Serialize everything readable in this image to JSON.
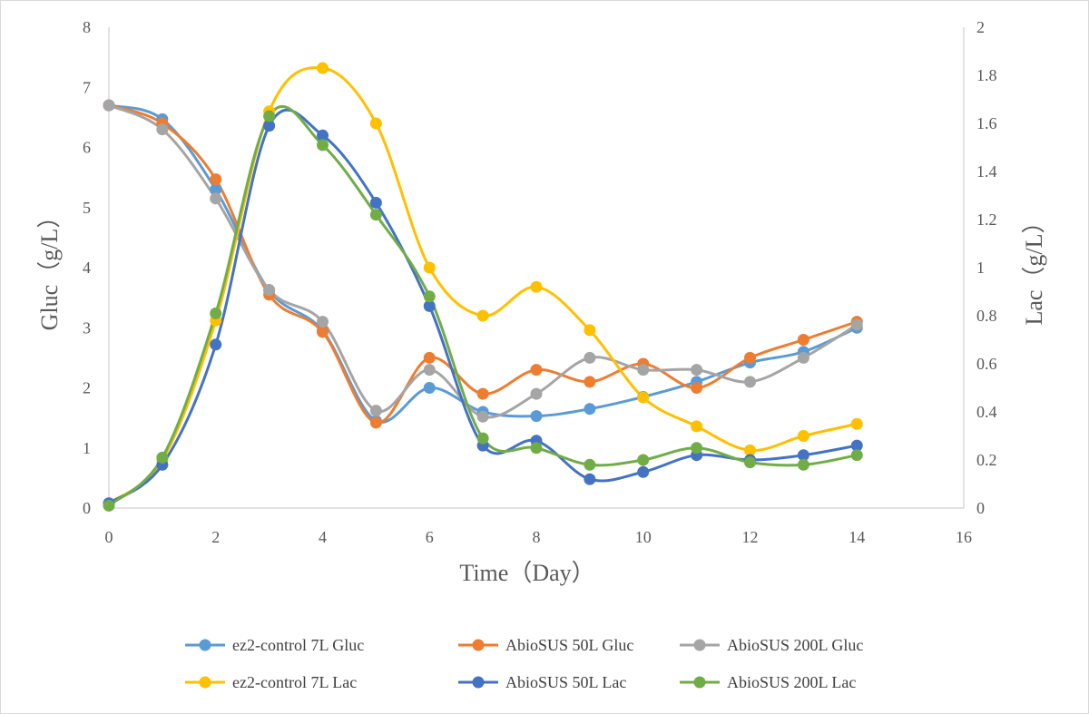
{
  "chart_data": {
    "type": "line",
    "title": "",
    "xlabel": "Time（Day）",
    "ylabel_left": "Gluc（g/L）",
    "ylabel_right": "Lac（g/L）",
    "xlim": [
      0,
      16
    ],
    "ylim_left": [
      0,
      8
    ],
    "ylim_right": [
      0,
      2
    ],
    "x_ticks": [
      "0",
      "2",
      "4",
      "6",
      "8",
      "10",
      "12",
      "14",
      "16"
    ],
    "y_ticks_left": [
      "0",
      "1",
      "2",
      "3",
      "4",
      "5",
      "6",
      "7",
      "8"
    ],
    "y_ticks_right": [
      "0",
      "0.2",
      "0.4",
      "0.6",
      "0.8",
      "1",
      "1.2",
      "1.4",
      "1.6",
      "1.8",
      "2"
    ],
    "grid": false,
    "smooth": true,
    "legend_position": "bottom",
    "x": [
      0,
      1,
      2,
      3,
      4,
      5,
      6,
      7,
      8,
      9,
      10,
      11,
      12,
      13,
      14
    ],
    "series": [
      {
        "name": "ez2-control 7L Gluc",
        "axis": "left",
        "color": "#5B9BD5",
        "values": [
          6.7,
          6.47,
          5.3,
          3.62,
          2.95,
          1.45,
          2.0,
          1.6,
          1.53,
          1.65,
          1.85,
          2.1,
          2.42,
          2.6,
          3.0
        ]
      },
      {
        "name": "AbioSUS 50L Gluc",
        "axis": "left",
        "color": "#ED7D31",
        "values": [
          6.7,
          6.4,
          5.47,
          3.55,
          2.93,
          1.42,
          2.5,
          1.9,
          2.3,
          2.1,
          2.4,
          2.0,
          2.5,
          2.8,
          3.1
        ]
      },
      {
        "name": "AbioSUS 200L Gluc",
        "axis": "left",
        "color": "#A5A5A5",
        "values": [
          6.7,
          6.3,
          5.15,
          3.63,
          3.1,
          1.62,
          2.3,
          1.52,
          1.9,
          2.5,
          2.3,
          2.3,
          2.1,
          2.5,
          3.05
        ]
      },
      {
        "name": "ez2-control 7L Lac",
        "axis": "right",
        "color": "#FFC000",
        "values": [
          0.02,
          0.2,
          0.78,
          1.65,
          1.83,
          1.6,
          1.0,
          0.8,
          0.92,
          0.74,
          0.46,
          0.34,
          0.24,
          0.3,
          0.35
        ]
      },
      {
        "name": "AbioSUS 50L Lac",
        "axis": "right",
        "color": "#4472C4",
        "values": [
          0.02,
          0.18,
          0.68,
          1.59,
          1.55,
          1.27,
          0.84,
          0.26,
          0.28,
          0.12,
          0.15,
          0.22,
          0.2,
          0.22,
          0.26
        ]
      },
      {
        "name": "AbioSUS 200L Lac",
        "axis": "right",
        "color": "#70AD47",
        "values": [
          0.01,
          0.21,
          0.81,
          1.63,
          1.51,
          1.22,
          0.88,
          0.29,
          0.25,
          0.18,
          0.2,
          0.25,
          0.19,
          0.18,
          0.22
        ]
      }
    ]
  }
}
